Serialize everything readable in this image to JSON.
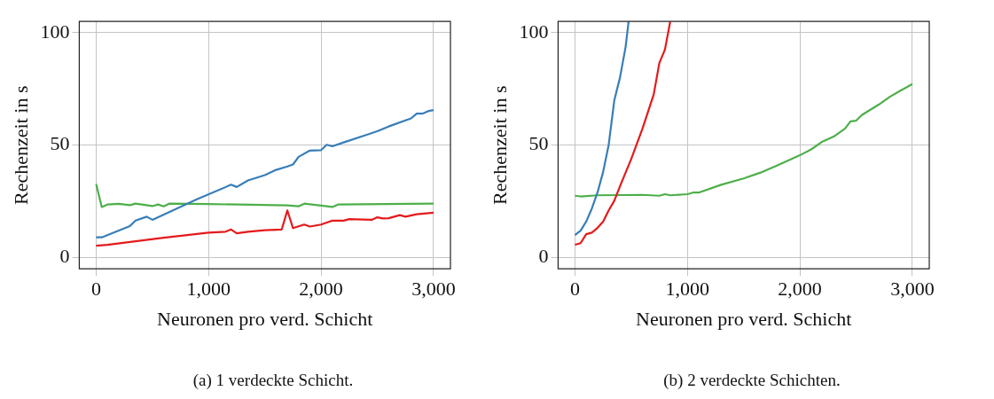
{
  "chart_data": [
    {
      "type": "line",
      "xlabel": "Neuronen pro verd. Schicht",
      "ylabel": "Rechenzeit in s",
      "annotations": [
        "(a) 1 verdeckte Schicht."
      ],
      "xlim": [
        -150,
        3150
      ],
      "ylim": [
        -5,
        105
      ],
      "xticks": [
        0,
        {
          "value": 1000,
          "label": "1,000"
        },
        {
          "value": 2000,
          "label": "2,000"
        },
        {
          "value": 3000,
          "label": "3,000"
        }
      ],
      "yticks": [
        0,
        50,
        100
      ],
      "grid": true,
      "legend": false,
      "marker": "none",
      "line_style": "solid",
      "series": [
        {
          "color": "#377eb8",
          "x": [
            0,
            50,
            300,
            350,
            450,
            500,
            900,
            1200,
            1250,
            1350,
            1500,
            1600,
            1700,
            1750,
            1800,
            1900,
            2000,
            2050,
            2100,
            2200,
            2400,
            2500,
            2600,
            2800,
            2850,
            2900,
            2950,
            3000
          ],
          "values": [
            9,
            9,
            14,
            16.5,
            18.2,
            16.8,
            26,
            32.4,
            31.4,
            34.3,
            36.7,
            39,
            40.5,
            41.4,
            44.8,
            47.6,
            47.8,
            50.2,
            49.5,
            51.2,
            54.5,
            56.2,
            58.3,
            61.9,
            64,
            64,
            65.1,
            65.6
          ]
        },
        {
          "color": "#4daf4a",
          "x": [
            0,
            50,
            100,
            200,
            300,
            350,
            500,
            550,
            600,
            650,
            1000,
            1700,
            1800,
            1850,
            2100,
            2150,
            3000
          ],
          "values": [
            32.7,
            22.5,
            23.6,
            23.9,
            23.3,
            24,
            22.9,
            23.6,
            22.8,
            24,
            23.8,
            23.2,
            22.8,
            24,
            22.5,
            23.6,
            24
          ]
        },
        {
          "color": "#e41a1c",
          "x": [
            0,
            100,
            600,
            1000,
            1150,
            1200,
            1250,
            1350,
            1500,
            1650,
            1700,
            1750,
            1850,
            1900,
            2000,
            2050,
            2100,
            2200,
            2250,
            2450,
            2500,
            2550,
            2600,
            2700,
            2750,
            2850,
            3000
          ],
          "values": [
            5.3,
            5.7,
            8.8,
            11.1,
            11.5,
            12.5,
            10.8,
            11.5,
            12.2,
            12.5,
            21,
            13.1,
            14.7,
            13.8,
            14.7,
            15.6,
            16.4,
            16.4,
            17.1,
            16.8,
            17.9,
            17.4,
            17.5,
            18.9,
            18.2,
            19.3,
            20
          ]
        }
      ]
    },
    {
      "type": "line",
      "xlabel": "Neuronen pro verd. Schicht",
      "ylabel": "Rechenzeit in s",
      "annotations": [
        "(b) 2 verdeckte Schichten."
      ],
      "xlim": [
        -150,
        3150
      ],
      "ylim": [
        -5,
        105
      ],
      "xticks": [
        0,
        {
          "value": 1000,
          "label": "1,000"
        },
        {
          "value": 2000,
          "label": "2,000"
        },
        {
          "value": 3000,
          "label": "3,000"
        }
      ],
      "yticks": [
        0,
        50,
        100
      ],
      "grid": true,
      "legend": false,
      "marker": "none",
      "line_style": "solid",
      "series": [
        {
          "color": "#377eb8",
          "x": [
            0,
            50,
            100,
            150,
            200,
            250,
            300,
            350,
            400,
            450,
            477
          ],
          "values": [
            10,
            12,
            16,
            21.8,
            28.9,
            38,
            50.2,
            70,
            80,
            93.6,
            105
          ]
        },
        {
          "color": "#e41a1c",
          "x": [
            0,
            50,
            100,
            150,
            200,
            250,
            300,
            350,
            400,
            500,
            600,
            700,
            750,
            800,
            847
          ],
          "values": [
            5.7,
            6.4,
            10.4,
            11.1,
            13.2,
            16,
            21,
            25.3,
            31.7,
            43.8,
            57.3,
            72.5,
            86.5,
            92.5,
            105
          ]
        },
        {
          "color": "#4daf4a",
          "x": [
            0,
            50,
            200,
            600,
            750,
            800,
            850,
            1000,
            1050,
            1100,
            1300,
            1500,
            1650,
            1800,
            2000,
            2100,
            2200,
            2300,
            2400,
            2450,
            2500,
            2550,
            2700,
            2800,
            2900,
            3000
          ],
          "values": [
            27.5,
            27.2,
            27.7,
            27.9,
            27.5,
            28.2,
            27.7,
            28.2,
            28.9,
            28.9,
            32.4,
            35.2,
            37.8,
            41,
            45.5,
            48.1,
            51.6,
            53.8,
            57.3,
            60.6,
            60.9,
            63.4,
            68,
            71.5,
            74.4,
            77.2
          ]
        }
      ]
    }
  ]
}
